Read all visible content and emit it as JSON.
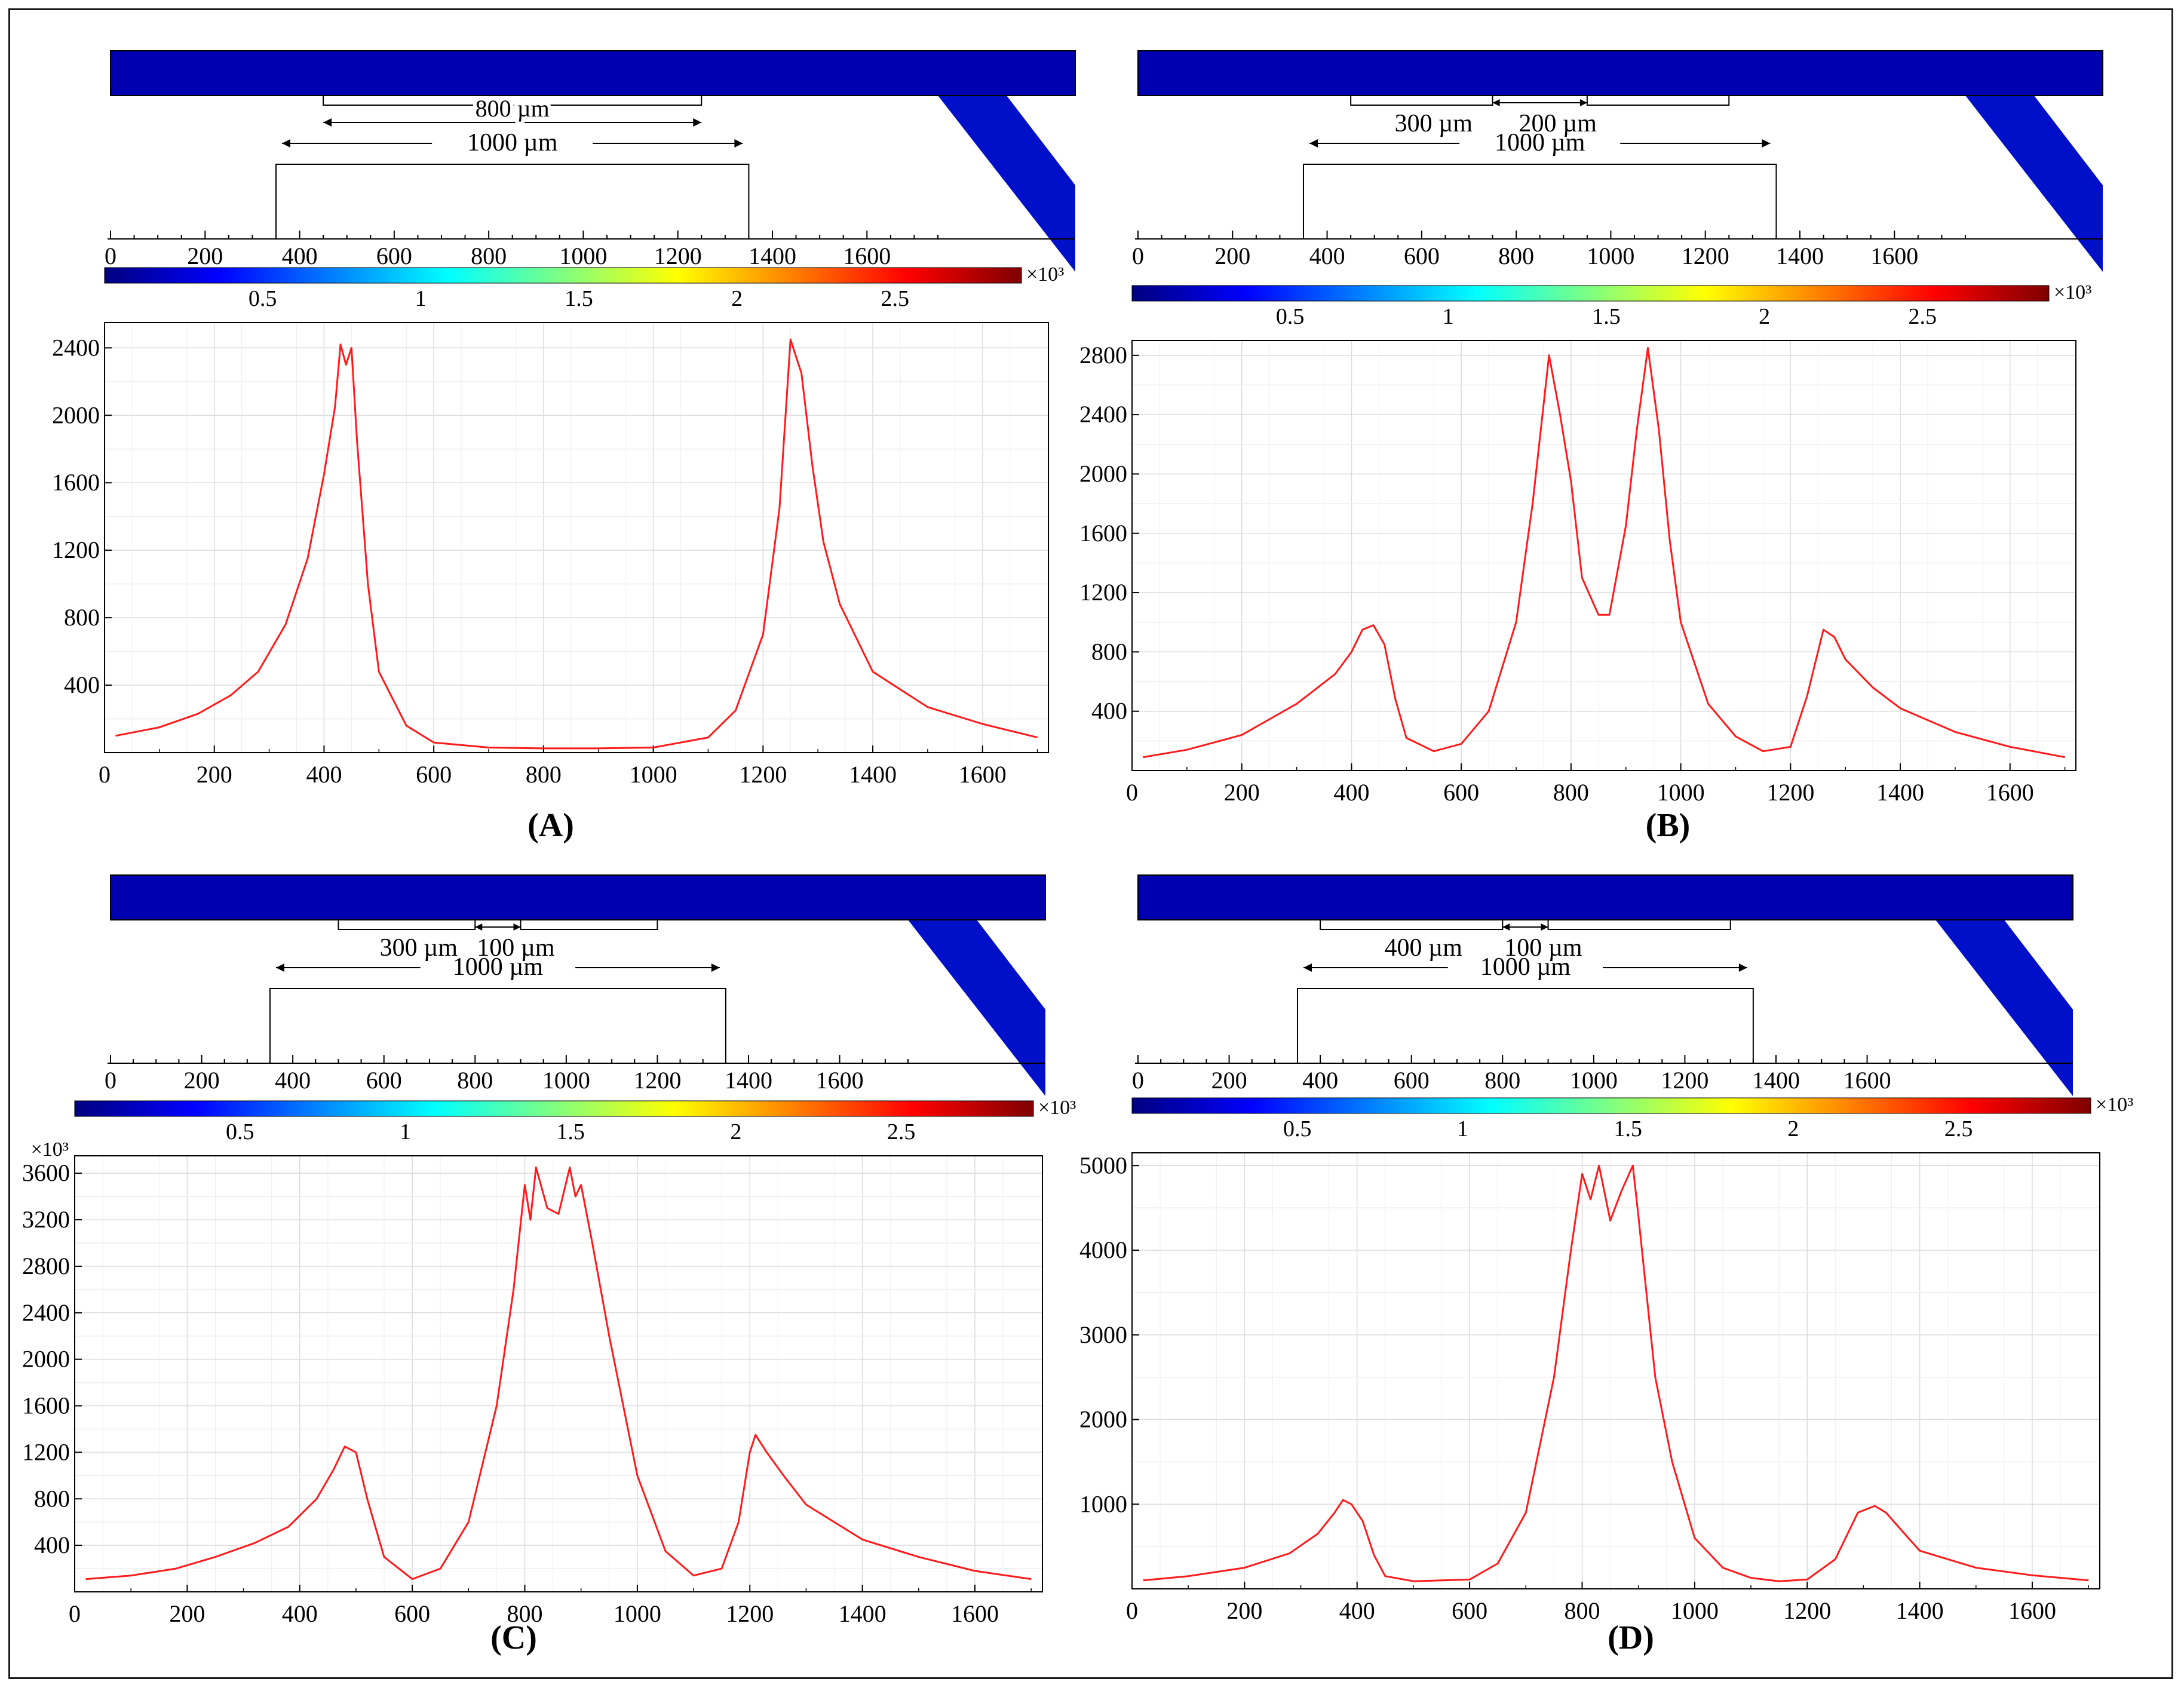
{
  "colorbar": {
    "ticks": [
      "0.5",
      "1",
      "1.5",
      "2",
      "2.5"
    ],
    "tick_values": [
      0.5,
      1,
      1.5,
      2,
      2.5
    ],
    "max": 2.9,
    "exponent": "×10³",
    "colors": [
      "#00007f",
      "#0000ff",
      "#0080ff",
      "#00ffff",
      "#80ff80",
      "#ffff00",
      "#ff8000",
      "#ff0000",
      "#7f0000"
    ]
  },
  "schematic_ticks": [
    "0",
    "200",
    "400",
    "600",
    "800",
    "1000",
    "1200",
    "1400",
    "1600"
  ],
  "colors": {
    "line": "#ff1a1a",
    "grid": "#dcdcdc",
    "axis": "#000000",
    "channel_dark": "#00007f"
  },
  "panels": [
    {
      "label": "(A)",
      "gap_labels": [
        "800 µm"
      ],
      "span_label": "1000 µm",
      "hotspots": [
        430,
        1250
      ],
      "electrode_groups": [
        [
          450,
          1250
        ]
      ],
      "show_exponent_left": false,
      "chart_data": {
        "type": "line",
        "title": "",
        "xlabel": "",
        "ylabel": "",
        "xlim": [
          0,
          1720
        ],
        "ylim": [
          0,
          2550
        ],
        "x_ticks": [
          0,
          200,
          400,
          600,
          800,
          1000,
          1200,
          1400,
          1600
        ],
        "y_ticks": [
          400,
          800,
          1200,
          1600,
          2000,
          2400
        ],
        "x_tick_labels": [
          "0",
          "200",
          "400",
          "600",
          "800",
          "1000",
          "1200",
          "1400",
          "1600"
        ],
        "y_tick_labels": [
          "400",
          "800",
          "1200",
          "1600",
          "2000",
          "2400"
        ],
        "x": [
          20,
          100,
          170,
          230,
          280,
          330,
          370,
          400,
          420,
          430,
          440,
          450,
          460,
          480,
          500,
          550,
          600,
          700,
          800,
          900,
          1000,
          1100,
          1150,
          1200,
          1230,
          1250,
          1260,
          1270,
          1290,
          1310,
          1340,
          1400,
          1500,
          1600,
          1700
        ],
        "y": [
          100,
          150,
          230,
          340,
          480,
          760,
          1150,
          1650,
          2050,
          2420,
          2300,
          2400,
          1850,
          1000,
          480,
          160,
          60,
          30,
          25,
          25,
          30,
          90,
          250,
          700,
          1450,
          2450,
          2350,
          2250,
          1700,
          1250,
          880,
          480,
          270,
          170,
          90
        ]
      }
    },
    {
      "label": "(B)",
      "gap_labels": [
        "300 µm",
        "200 µm"
      ],
      "span_label": "1000 µm",
      "hotspots": [
        430,
        760,
        940,
        1260
      ],
      "electrode_groups": [
        [
          450,
          750
        ],
        [
          950,
          1250
        ]
      ],
      "show_exponent_left": false,
      "chart_data": {
        "type": "line",
        "title": "",
        "xlabel": "",
        "ylabel": "",
        "xlim": [
          0,
          1720
        ],
        "ylim": [
          0,
          2900
        ],
        "x_ticks": [
          0,
          200,
          400,
          600,
          800,
          1000,
          1200,
          1400,
          1600
        ],
        "y_ticks": [
          400,
          800,
          1200,
          1600,
          2000,
          2400,
          2800
        ],
        "x_tick_labels": [
          "0",
          "200",
          "400",
          "600",
          "800",
          "1000",
          "1200",
          "1400",
          "1600"
        ],
        "y_tick_labels": [
          "400",
          "800",
          "1200",
          "1600",
          "2000",
          "2400",
          "2800"
        ],
        "x": [
          20,
          100,
          200,
          300,
          370,
          400,
          420,
          440,
          460,
          480,
          500,
          550,
          600,
          650,
          700,
          730,
          760,
          780,
          800,
          820,
          850,
          870,
          900,
          920,
          940,
          960,
          980,
          1000,
          1050,
          1100,
          1150,
          1200,
          1230,
          1260,
          1280,
          1300,
          1350,
          1400,
          1500,
          1600,
          1700
        ],
        "y": [
          90,
          140,
          240,
          450,
          650,
          800,
          950,
          980,
          850,
          480,
          220,
          130,
          180,
          400,
          1000,
          1800,
          2800,
          2400,
          1950,
          1300,
          1050,
          1050,
          1650,
          2300,
          2850,
          2300,
          1550,
          1000,
          450,
          230,
          130,
          160,
          500,
          950,
          900,
          750,
          560,
          420,
          260,
          160,
          90
        ]
      }
    },
    {
      "label": "(C)",
      "gap_labels": [
        "300 µm",
        "100 µm"
      ],
      "span_label": "1000 µm",
      "hotspots": [
        480,
        840,
        1210
      ],
      "electrode_groups": [
        [
          500,
          800
        ],
        [
          900,
          1200
        ]
      ],
      "show_exponent_left": true,
      "chart_data": {
        "type": "line",
        "title": "",
        "xlabel": "",
        "ylabel": "",
        "xlim": [
          0,
          1720
        ],
        "ylim": [
          0,
          3750
        ],
        "x_ticks": [
          0,
          200,
          400,
          600,
          800,
          1000,
          1200,
          1400,
          1600
        ],
        "y_ticks": [
          400,
          800,
          1200,
          1600,
          2000,
          2400,
          2800,
          3200,
          3600
        ],
        "x_tick_labels": [
          "0",
          "200",
          "400",
          "600",
          "800",
          "1000",
          "1200",
          "1400",
          "1600"
        ],
        "y_tick_labels": [
          "400",
          "800",
          "1200",
          "1600",
          "2000",
          "2400",
          "2800",
          "3200",
          "3600"
        ],
        "x": [
          20,
          100,
          180,
          250,
          320,
          380,
          430,
          460,
          480,
          500,
          520,
          550,
          600,
          650,
          700,
          750,
          780,
          800,
          810,
          820,
          840,
          860,
          880,
          890,
          900,
          920,
          950,
          1000,
          1050,
          1100,
          1150,
          1180,
          1200,
          1210,
          1230,
          1260,
          1300,
          1400,
          1500,
          1600,
          1700
        ],
        "y": [
          110,
          140,
          200,
          300,
          420,
          560,
          800,
          1050,
          1250,
          1200,
          800,
          300,
          110,
          200,
          600,
          1600,
          2600,
          3500,
          3200,
          3650,
          3300,
          3250,
          3650,
          3400,
          3500,
          3000,
          2200,
          1000,
          350,
          140,
          200,
          600,
          1200,
          1350,
          1200,
          1000,
          750,
          450,
          300,
          180,
          110
        ]
      }
    },
    {
      "label": "(D)",
      "gap_labels": [
        "400 µm",
        "100 µm"
      ],
      "span_label": "1000 µm",
      "hotspots": [
        350,
        850,
        1340
      ],
      "electrode_groups": [
        [
          400,
          800
        ],
        [
          900,
          1300
        ]
      ],
      "show_exponent_left": false,
      "chart_data": {
        "type": "line",
        "title": "",
        "xlabel": "",
        "ylabel": "",
        "xlim": [
          0,
          1720
        ],
        "ylim": [
          0,
          5150
        ],
        "x_ticks": [
          0,
          200,
          400,
          600,
          800,
          1000,
          1200,
          1400,
          1600
        ],
        "y_ticks": [
          1000,
          2000,
          3000,
          4000,
          5000
        ],
        "x_tick_labels": [
          "0",
          "200",
          "400",
          "600",
          "800",
          "1000",
          "1200",
          "1400",
          "1600"
        ],
        "y_tick_labels": [
          "1000",
          "2000",
          "3000",
          "4000",
          "5000"
        ],
        "x": [
          20,
          100,
          200,
          280,
          330,
          360,
          375,
          390,
          410,
          430,
          450,
          500,
          600,
          650,
          700,
          750,
          780,
          800,
          815,
          830,
          850,
          870,
          890,
          900,
          930,
          960,
          1000,
          1050,
          1100,
          1150,
          1200,
          1250,
          1290,
          1320,
          1340,
          1360,
          1400,
          1500,
          1600,
          1700
        ],
        "y": [
          100,
          150,
          250,
          420,
          650,
          900,
          1050,
          1000,
          800,
          400,
          150,
          90,
          110,
          300,
          900,
          2500,
          4000,
          4900,
          4600,
          5000,
          4350,
          4700,
          5000,
          4400,
          2500,
          1500,
          600,
          250,
          130,
          90,
          110,
          350,
          900,
          980,
          900,
          750,
          450,
          250,
          160,
          100
        ]
      }
    }
  ]
}
